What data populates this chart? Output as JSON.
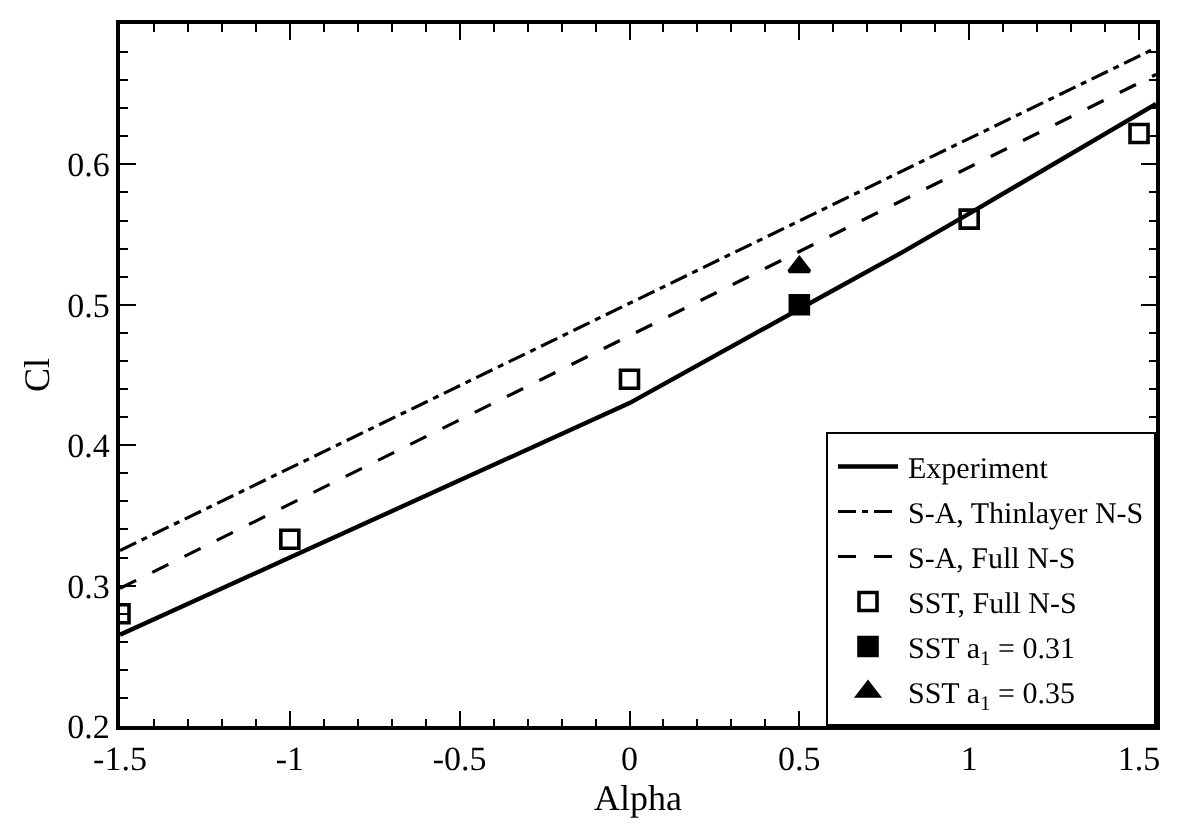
{
  "chart_data": {
    "type": "line",
    "xlabel": "Alpha",
    "ylabel": "Cl",
    "xlim": [
      -1.5,
      1.55
    ],
    "ylim": [
      0.2,
      0.7
    ],
    "xticks": [
      -1.5,
      -1,
      -0.5,
      0,
      0.5,
      1,
      1.5,
      {
        "value": -1.4,
        "label": null
      },
      {
        "value": -1.3,
        "label": null
      },
      {
        "value": -1.2,
        "label": null
      },
      {
        "value": -1.1,
        "label": null
      },
      {
        "value": -0.9,
        "label": null
      },
      {
        "value": -0.8,
        "label": null
      },
      {
        "value": -0.7,
        "label": null
      },
      {
        "value": -0.6,
        "label": null
      },
      {
        "value": -0.4,
        "label": null
      },
      {
        "value": -0.3,
        "label": null
      },
      {
        "value": -0.2,
        "label": null
      },
      {
        "value": -0.1,
        "label": null
      },
      {
        "value": 0.1,
        "label": null
      },
      {
        "value": 0.2,
        "label": null
      },
      {
        "value": 0.3,
        "label": null
      },
      {
        "value": 0.4,
        "label": null
      },
      {
        "value": 0.6,
        "label": null
      },
      {
        "value": 0.7,
        "label": null
      },
      {
        "value": 0.8,
        "label": null
      },
      {
        "value": 0.9,
        "label": null
      },
      {
        "value": 1.1,
        "label": null
      },
      {
        "value": 1.2,
        "label": null
      },
      {
        "value": 1.3,
        "label": null
      },
      {
        "value": 1.4,
        "label": null
      }
    ],
    "yticks": [
      0.2,
      0.3,
      0.4,
      0.5,
      0.6,
      {
        "value": 0.22,
        "label": null
      },
      {
        "value": 0.24,
        "label": null
      },
      {
        "value": 0.26,
        "label": null
      },
      {
        "value": 0.28,
        "label": null
      },
      {
        "value": 0.32,
        "label": null
      },
      {
        "value": 0.34,
        "label": null
      },
      {
        "value": 0.36,
        "label": null
      },
      {
        "value": 0.38,
        "label": null
      },
      {
        "value": 0.42,
        "label": null
      },
      {
        "value": 0.44,
        "label": null
      },
      {
        "value": 0.46,
        "label": null
      },
      {
        "value": 0.48,
        "label": null
      },
      {
        "value": 0.52,
        "label": null
      },
      {
        "value": 0.54,
        "label": null
      },
      {
        "value": 0.56,
        "label": null
      },
      {
        "value": 0.58,
        "label": null
      },
      {
        "value": 0.62,
        "label": null
      },
      {
        "value": 0.64,
        "label": null
      },
      {
        "value": 0.66,
        "label": null
      },
      {
        "value": 0.68,
        "label": null
      }
    ],
    "legend": "bottom right",
    "series": [
      {
        "name": "Experiment",
        "color": "#000000",
        "line_style": "solid",
        "marker": "none",
        "x": [
          -1.5,
          -1,
          -0.5,
          0,
          0.5,
          0.8,
          1,
          1.55
        ],
        "values": [
          0.265,
          0.32,
          0.375,
          0.43,
          0.497,
          0.537,
          0.565,
          0.643
        ]
      },
      {
        "name": "S-A, Thinlayer N-S",
        "color": "#000000",
        "line_style": "dashdot",
        "marker": "none",
        "x": [
          -1.5,
          1.55
        ],
        "values": [
          0.325,
          0.683
        ]
      },
      {
        "name": "S-A, Full N-S",
        "color": "#000000",
        "line_style": "dashed",
        "marker": "none",
        "x": [
          -1.5,
          1.55
        ],
        "values": [
          0.298,
          0.664
        ]
      },
      {
        "name": "SST, Full N-S",
        "type": "scatter",
        "color": "#000000",
        "marker": "square-open",
        "x": [
          -1.5,
          -1,
          0,
          1,
          1.5
        ],
        "values": [
          0.28,
          0.333,
          0.447,
          0.561,
          0.622
        ]
      },
      {
        "name": "SST a$_{1}$ = 0.31",
        "type": "scatter",
        "color": "#000000",
        "marker": "square",
        "x": [
          0.5
        ],
        "values": [
          0.5
        ]
      },
      {
        "name": "SST a$_{1}$ = 0.35",
        "type": "scatter",
        "color": "#000000",
        "marker": "triangle",
        "x": [
          0.5
        ],
        "values": [
          0.527
        ]
      }
    ]
  }
}
